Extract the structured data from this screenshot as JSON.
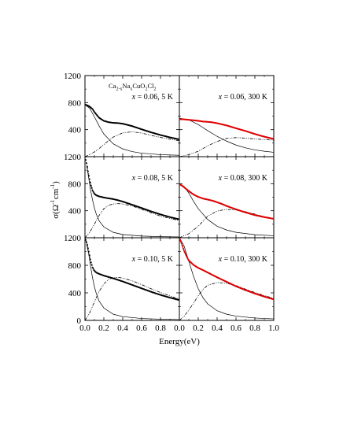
{
  "chart_data": {
    "type": "line",
    "figure_title": "",
    "xlabel": "Energy(eV)",
    "ylabel": {
      "main": "σ(Ω",
      "sup1": "-1",
      "mid": "cm",
      "sup2": "-1",
      "end": ")"
    },
    "formula": {
      "a": "Ca",
      "s1": "2-x",
      "b": "Na",
      "s2": "x",
      "c": "CuO",
      "s3": "2",
      "d": "Cl",
      "s4": "2"
    },
    "xlim": [
      0,
      1
    ],
    "ylim": [
      0,
      1200
    ],
    "yticks": [
      0,
      400,
      800,
      1200
    ],
    "yminor": [
      200,
      600,
      1000
    ],
    "xticks": [
      0.0,
      0.2,
      0.4,
      0.6,
      0.8,
      1.0
    ],
    "xtick_labels_left": [
      "0.0",
      "0.2",
      "0.4",
      "0.6",
      "0.8"
    ],
    "xtick_labels_right": [
      "0.0",
      "0.2",
      "0.4",
      "0.6",
      "0.8",
      "1.0"
    ],
    "ytick_labels": {
      "row0": [
        "1200",
        "800",
        "400"
      ],
      "row1": [
        "1200",
        "800",
        "400"
      ],
      "row2": [
        "1200",
        "800",
        "400",
        "0"
      ]
    },
    "colors": {
      "data_5K": "#000000",
      "data_300K": "#e00000",
      "fit": "#000000"
    },
    "panels": [
      {
        "id": "p1",
        "row": 0,
        "col": 0,
        "x_val": "0.06",
        "temp": "5 K",
        "show_formula": true,
        "data": {
          "x": [
            0.0,
            0.02,
            0.05,
            0.08,
            0.1,
            0.15,
            0.2,
            0.25,
            0.3,
            0.35,
            0.4,
            0.45,
            0.5,
            0.6,
            0.7,
            0.8,
            0.9,
            1.0
          ],
          "y": [
            770,
            762,
            740,
            705,
            660,
            575,
            530,
            510,
            500,
            497,
            487,
            470,
            452,
            405,
            360,
            320,
            285,
            255
          ]
        },
        "drude": {
          "x": [
            0,
            0.05,
            0.1,
            0.15,
            0.2,
            0.3,
            0.4,
            0.5,
            0.6,
            0.8,
            1.0
          ],
          "y": [
            770,
            715,
            590,
            455,
            335,
            190,
            115,
            75,
            52,
            30,
            20
          ]
        },
        "mir": {
          "x": [
            0,
            0.05,
            0.1,
            0.15,
            0.2,
            0.3,
            0.4,
            0.5,
            0.6,
            0.7,
            0.8,
            0.9,
            1.0
          ],
          "y": [
            0,
            30,
            70,
            120,
            180,
            290,
            352,
            368,
            350,
            315,
            285,
            260,
            235
          ]
        }
      },
      {
        "id": "p2",
        "row": 0,
        "col": 1,
        "x_val": "0.06",
        "temp": "300 K",
        "show_formula": false,
        "data": {
          "x": [
            0.0,
            0.05,
            0.1,
            0.15,
            0.2,
            0.25,
            0.3,
            0.35,
            0.4,
            0.45,
            0.5,
            0.6,
            0.7,
            0.8,
            0.9,
            1.0
          ],
          "y": [
            555,
            552,
            545,
            538,
            530,
            520,
            515,
            508,
            495,
            478,
            462,
            420,
            380,
            335,
            295,
            262
          ]
        },
        "drude": {
          "x": [
            0,
            0.1,
            0.2,
            0.3,
            0.4,
            0.5,
            0.6,
            0.7,
            0.8,
            0.9,
            1.0
          ],
          "y": [
            570,
            545,
            475,
            385,
            300,
            230,
            172,
            130,
            100,
            80,
            65
          ]
        },
        "mir": {
          "x": [
            0,
            0.1,
            0.2,
            0.3,
            0.4,
            0.5,
            0.6,
            0.7,
            0.8,
            0.9,
            1.0
          ],
          "y": [
            0,
            30,
            80,
            160,
            225,
            270,
            282,
            275,
            262,
            252,
            245
          ]
        }
      },
      {
        "id": "p3",
        "row": 1,
        "col": 0,
        "x_val": "0.08",
        "temp": "5 K",
        "show_formula": false,
        "data": {
          "x": [
            0.0,
            0.02,
            0.04,
            0.06,
            0.08,
            0.1,
            0.12,
            0.15,
            0.2,
            0.25,
            0.3,
            0.35,
            0.4,
            0.5,
            0.6,
            0.7,
            0.8,
            0.9,
            1.0
          ],
          "y": [
            1200,
            1080,
            920,
            790,
            700,
            650,
            628,
            612,
            595,
            583,
            572,
            555,
            535,
            488,
            440,
            390,
            345,
            305,
            272
          ]
        },
        "drude": {
          "x": [
            0.02,
            0.04,
            0.06,
            0.08,
            0.1,
            0.12,
            0.15,
            0.2,
            0.3,
            0.4,
            0.6,
            0.8,
            1.0
          ],
          "y": [
            1060,
            880,
            700,
            560,
            440,
            350,
            250,
            160,
            80,
            48,
            25,
            16,
            12
          ]
        },
        "mir": {
          "x": [
            0,
            0.05,
            0.1,
            0.15,
            0.2,
            0.25,
            0.3,
            0.35,
            0.4,
            0.5,
            0.6,
            0.7,
            0.8,
            0.9,
            1.0
          ],
          "y": [
            0,
            80,
            200,
            330,
            430,
            480,
            500,
            505,
            500,
            470,
            420,
            370,
            320,
            285,
            255
          ]
        }
      },
      {
        "id": "p4",
        "row": 1,
        "col": 1,
        "x_val": "0.08",
        "temp": "300 K",
        "show_formula": false,
        "data": {
          "x": [
            0.0,
            0.03,
            0.06,
            0.1,
            0.15,
            0.2,
            0.25,
            0.3,
            0.35,
            0.4,
            0.45,
            0.5,
            0.6,
            0.7,
            0.8,
            0.9,
            1.0
          ],
          "y": [
            790,
            770,
            735,
            690,
            640,
            605,
            580,
            565,
            548,
            525,
            500,
            470,
            420,
            375,
            335,
            305,
            280
          ]
        },
        "drude": {
          "x": [
            0,
            0.05,
            0.1,
            0.15,
            0.2,
            0.3,
            0.4,
            0.5,
            0.6,
            0.8,
            1.0
          ],
          "y": [
            800,
            760,
            660,
            540,
            430,
            270,
            170,
            115,
            80,
            45,
            30
          ]
        },
        "mir": {
          "x": [
            0,
            0.1,
            0.2,
            0.3,
            0.4,
            0.5,
            0.6,
            0.7,
            0.8,
            0.9,
            1.0
          ],
          "y": [
            0,
            60,
            170,
            320,
            395,
            420,
            410,
            385,
            350,
            310,
            275
          ]
        }
      },
      {
        "id": "p5",
        "row": 2,
        "col": 0,
        "x_val": "0.10",
        "temp": "5 K",
        "show_formula": false,
        "data": {
          "x": [
            0.0,
            0.02,
            0.04,
            0.06,
            0.08,
            0.1,
            0.12,
            0.15,
            0.2,
            0.25,
            0.3,
            0.35,
            0.4,
            0.5,
            0.6,
            0.7,
            0.8,
            0.9,
            1.0
          ],
          "y": [
            1200,
            1120,
            1000,
            860,
            770,
            720,
            695,
            675,
            650,
            630,
            610,
            588,
            565,
            515,
            465,
            415,
            370,
            330,
            295
          ]
        },
        "drude": {
          "x": [
            0.02,
            0.04,
            0.06,
            0.08,
            0.1,
            0.12,
            0.15,
            0.2,
            0.3,
            0.4,
            0.6,
            0.8,
            1.0
          ],
          "y": [
            1100,
            960,
            780,
            620,
            490,
            390,
            280,
            180,
            90,
            55,
            28,
            18,
            12
          ]
        },
        "mir": {
          "x": [
            0,
            0.05,
            0.1,
            0.15,
            0.2,
            0.25,
            0.3,
            0.35,
            0.4,
            0.5,
            0.6,
            0.7,
            0.8,
            0.9,
            1.0
          ],
          "y": [
            0,
            110,
            270,
            420,
            530,
            595,
            620,
            625,
            615,
            575,
            520,
            460,
            405,
            355,
            310
          ]
        }
      },
      {
        "id": "p6",
        "row": 2,
        "col": 1,
        "x_val": "0.10",
        "temp": "300 K",
        "show_formula": false,
        "data": {
          "x": [
            0.0,
            0.02,
            0.05,
            0.08,
            0.1,
            0.15,
            0.2,
            0.25,
            0.3,
            0.35,
            0.4,
            0.5,
            0.6,
            0.7,
            0.8,
            0.9,
            1.0
          ],
          "y": [
            1200,
            1130,
            1010,
            920,
            870,
            805,
            762,
            730,
            695,
            660,
            625,
            560,
            495,
            440,
            390,
            345,
            305
          ]
        },
        "drude": {
          "x": [
            0,
            0.05,
            0.1,
            0.15,
            0.2,
            0.25,
            0.3,
            0.4,
            0.5,
            0.6,
            0.8,
            1.0
          ],
          "y": [
            1200,
            1080,
            860,
            640,
            460,
            330,
            240,
            140,
            90,
            62,
            35,
            22
          ]
        },
        "mir": {
          "x": [
            0,
            0.05,
            0.1,
            0.15,
            0.2,
            0.25,
            0.3,
            0.4,
            0.5,
            0.6,
            0.7,
            0.8,
            0.9,
            1.0
          ],
          "y": [
            0,
            60,
            150,
            250,
            360,
            450,
            510,
            550,
            540,
            505,
            455,
            405,
            360,
            320
          ]
        }
      }
    ]
  }
}
